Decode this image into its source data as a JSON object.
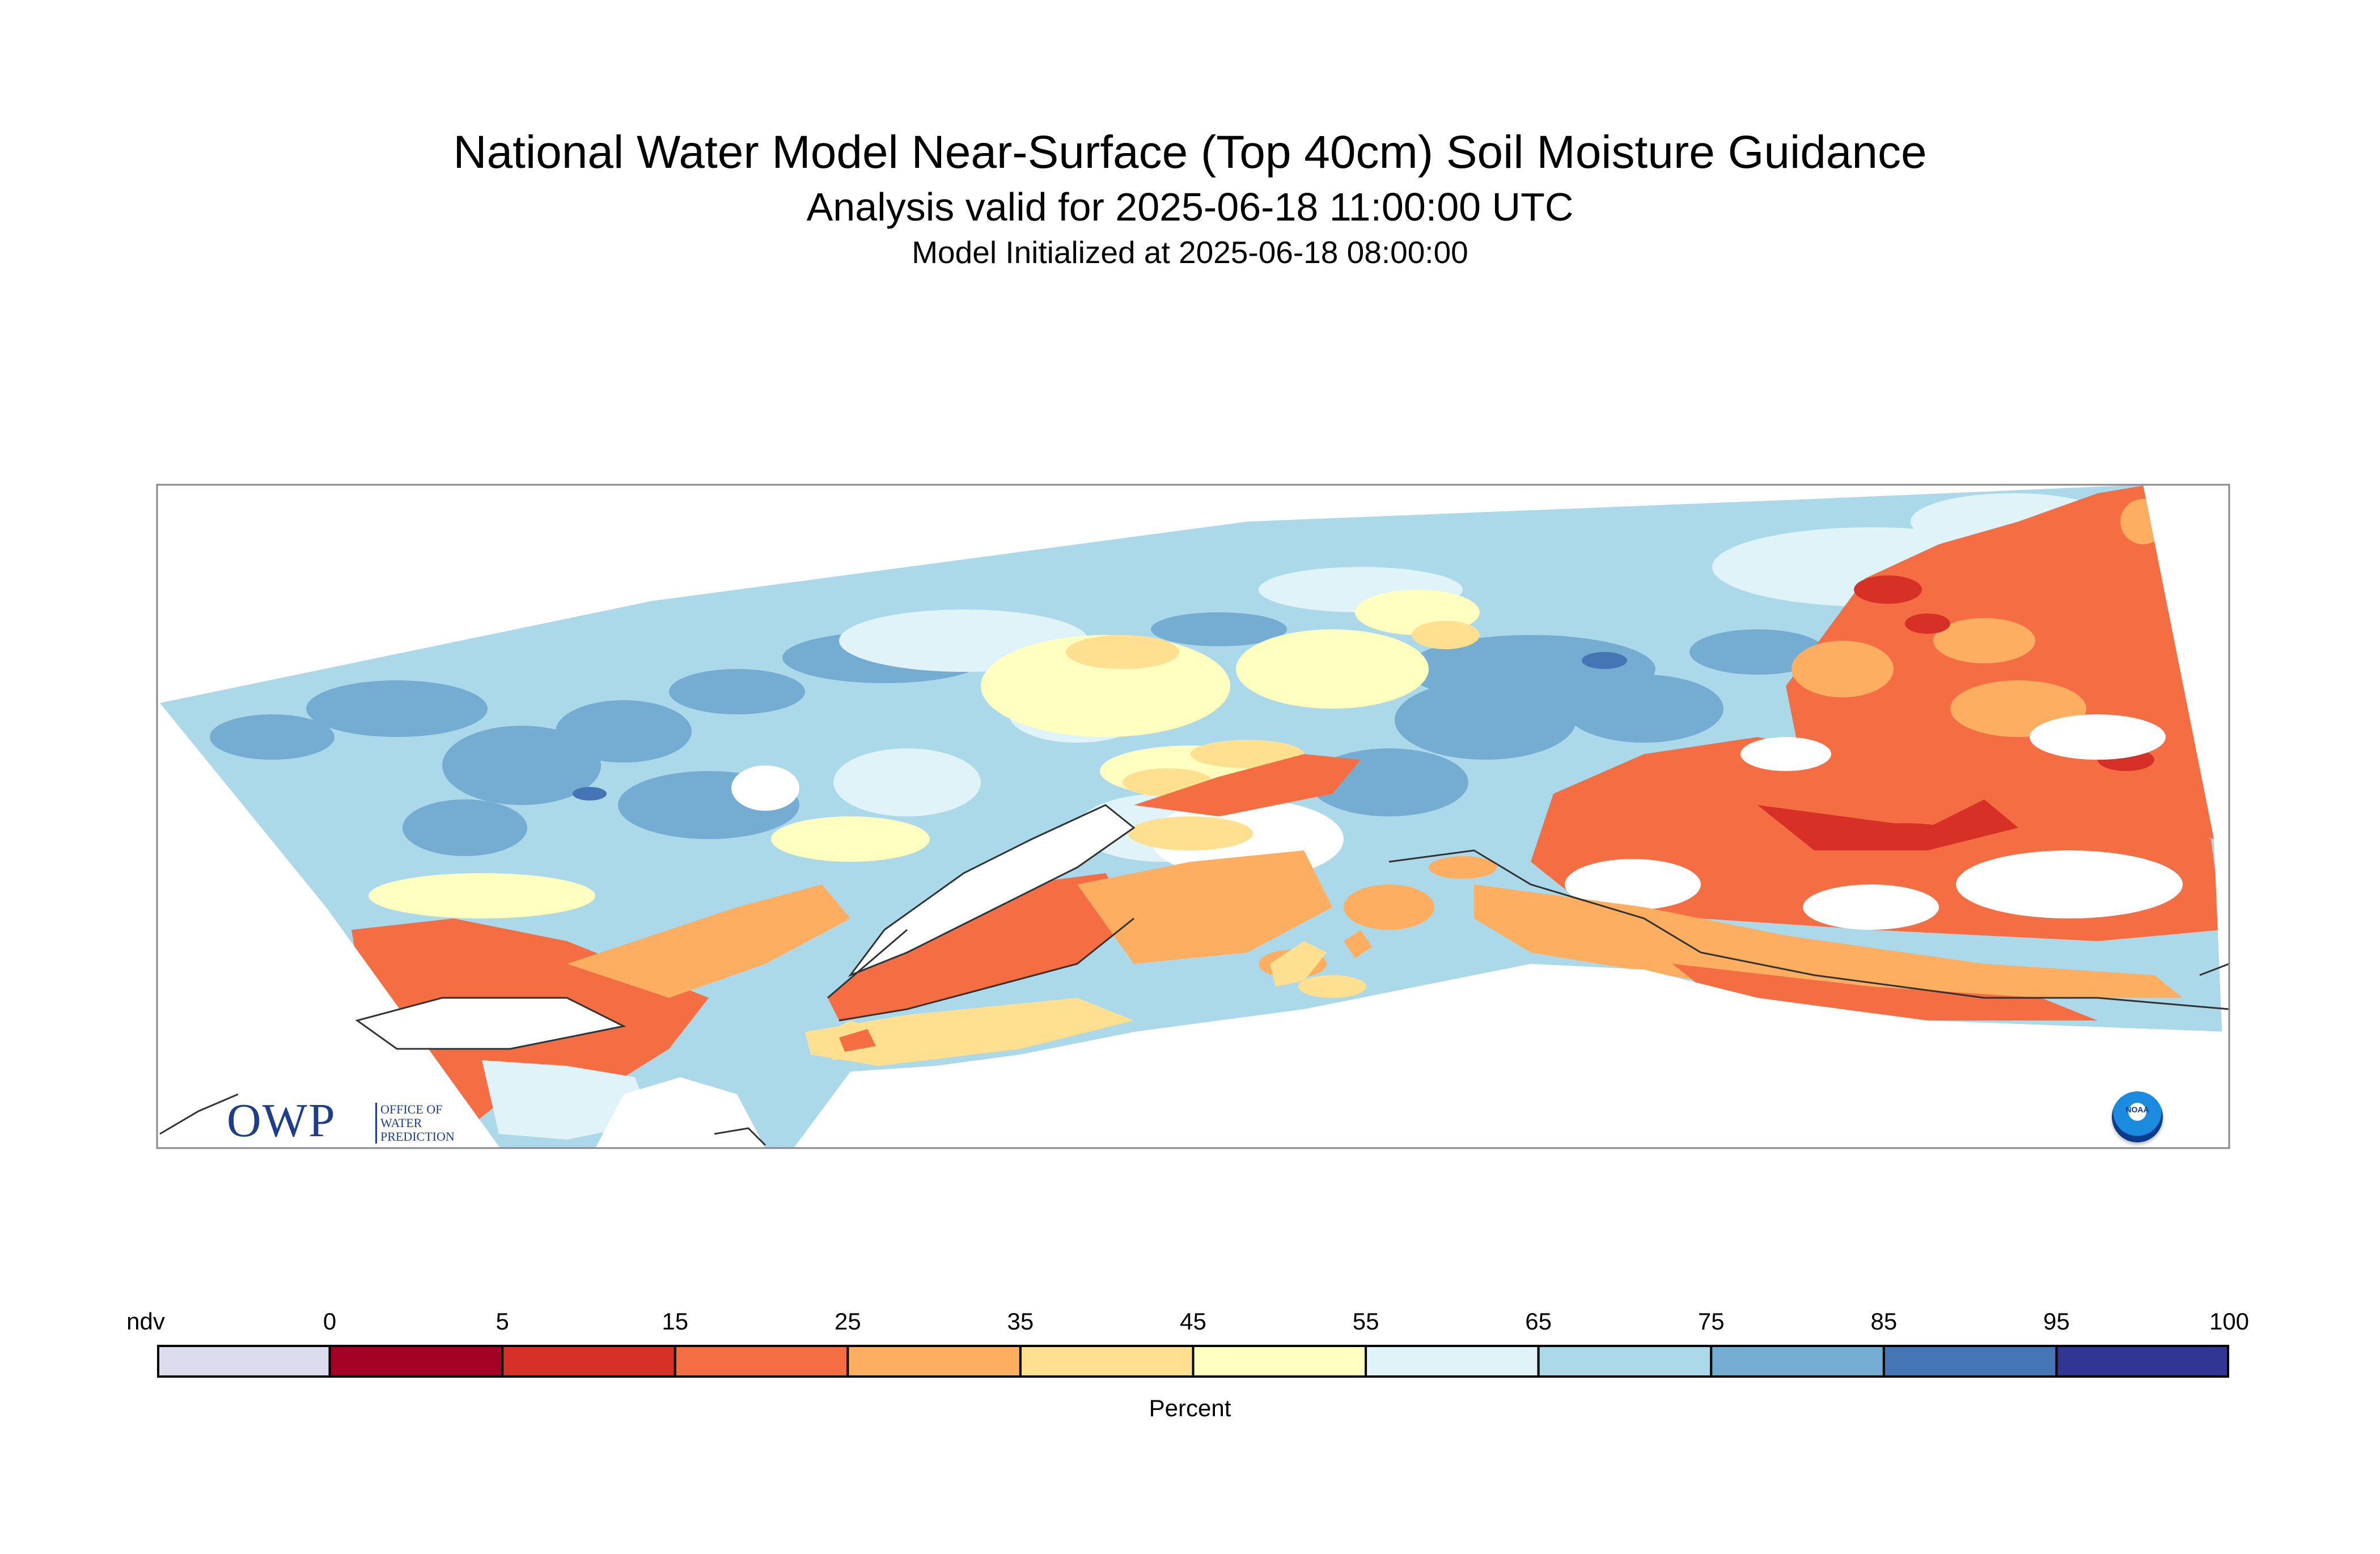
{
  "title": "National Water Model Near-Surface (Top 40cm) Soil Moisture Guidance",
  "subtitle": "Analysis valid for 2025-06-18 11:00:00 UTC",
  "init": "Model Initialized at 2025-06-18 08:00:00",
  "logos": {
    "owp_big": "OWP",
    "owp_line1": "OFFICE OF",
    "owp_line2": "WATER",
    "owp_line3": "PREDICTION",
    "noaa": "NOAA"
  },
  "legend": {
    "title": "Percent",
    "labels": [
      "ndv",
      "0",
      "5",
      "15",
      "25",
      "35",
      "45",
      "55",
      "65",
      "75",
      "85",
      "95",
      "100"
    ],
    "colors": [
      "#dcdcee",
      "#a50026",
      "#d73027",
      "#f46d43",
      "#fdae61",
      "#fee090",
      "#ffffbf",
      "#e0f3f8",
      "#abd9e9",
      "#74add1",
      "#4575b4",
      "#313695"
    ]
  },
  "colors": {
    "water": "#ffffff",
    "no_data_land": "#ffffff",
    "frame": "#888888",
    "coastline": "#333333"
  }
}
